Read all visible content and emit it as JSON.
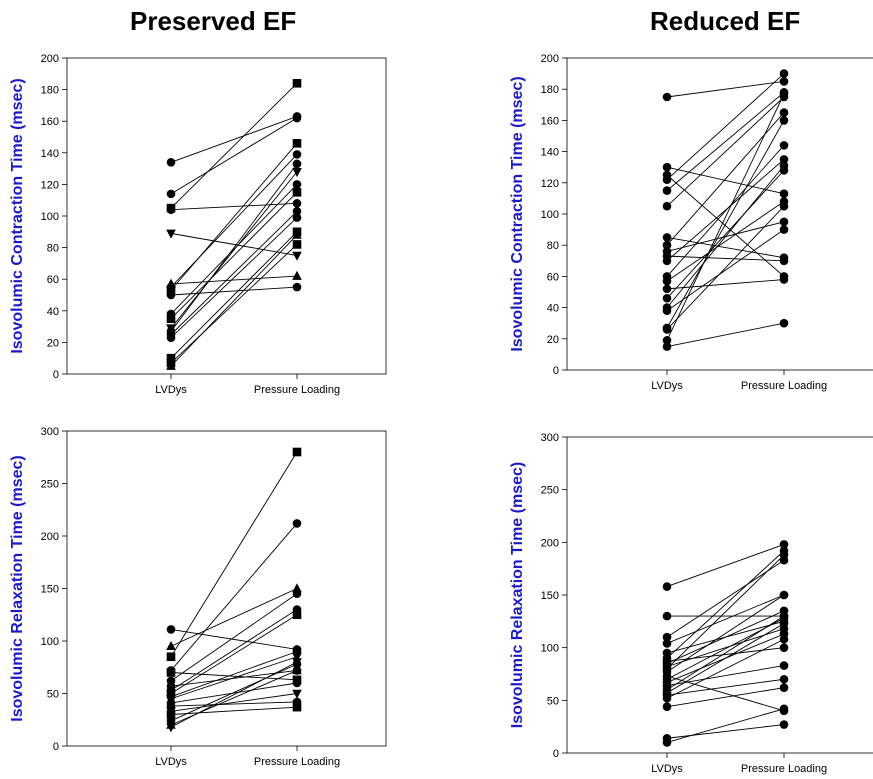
{
  "titles": {
    "left": "Preserved EF",
    "right": "Reduced EF"
  },
  "chart_data": [
    {
      "type": "line",
      "panel": "top-left",
      "ylabel": "Isovolumic Contraction Time (msec)",
      "categories": [
        "LVDys",
        "Pressure Loading"
      ],
      "ylim": [
        0,
        200
      ],
      "yticks": [
        0,
        20,
        40,
        60,
        80,
        100,
        120,
        140,
        160,
        180,
        200
      ],
      "series": [
        {
          "marker": "circle",
          "values": [
            134,
            163
          ]
        },
        {
          "marker": "circle",
          "values": [
            114,
            162
          ]
        },
        {
          "marker": "square",
          "values": [
            105,
            184
          ]
        },
        {
          "marker": "circle",
          "values": [
            104,
            108
          ]
        },
        {
          "marker": "triangle-down",
          "values": [
            89,
            75
          ]
        },
        {
          "marker": "triangle-up",
          "values": [
            57,
            62
          ]
        },
        {
          "marker": "circle",
          "values": [
            55,
            139
          ]
        },
        {
          "marker": "square",
          "values": [
            53,
            146
          ]
        },
        {
          "marker": "circle",
          "values": [
            50,
            55
          ]
        },
        {
          "marker": "circle",
          "values": [
            38,
            120
          ]
        },
        {
          "marker": "square",
          "values": [
            35,
            115
          ]
        },
        {
          "marker": "triangle-down",
          "values": [
            29,
            128
          ]
        },
        {
          "marker": "circle",
          "values": [
            27,
            133
          ]
        },
        {
          "marker": "circle",
          "values": [
            25,
            103
          ]
        },
        {
          "marker": "circle",
          "values": [
            23,
            99
          ]
        },
        {
          "marker": "square",
          "values": [
            10,
            90
          ]
        },
        {
          "marker": "square",
          "values": [
            7,
            82
          ]
        },
        {
          "marker": "triangle-up",
          "values": [
            5,
            88
          ]
        }
      ]
    },
    {
      "type": "line",
      "panel": "top-right",
      "ylabel": "Isovolumic Contraction Time (msec)",
      "categories": [
        "LVDys",
        "Pressure Loading"
      ],
      "ylim": [
        0,
        200
      ],
      "yticks": [
        0,
        20,
        40,
        60,
        80,
        100,
        120,
        140,
        160,
        180,
        200
      ],
      "series": [
        {
          "marker": "circle",
          "values": [
            175,
            185
          ]
        },
        {
          "marker": "circle",
          "values": [
            130,
            113
          ]
        },
        {
          "marker": "circle",
          "values": [
            125,
            60
          ]
        },
        {
          "marker": "circle",
          "values": [
            122,
            190
          ]
        },
        {
          "marker": "circle",
          "values": [
            115,
            178
          ]
        },
        {
          "marker": "circle",
          "values": [
            105,
            175
          ]
        },
        {
          "marker": "circle",
          "values": [
            85,
            72
          ]
        },
        {
          "marker": "circle",
          "values": [
            80,
            165
          ]
        },
        {
          "marker": "circle",
          "values": [
            76,
            95
          ]
        },
        {
          "marker": "circle",
          "values": [
            73,
            70
          ]
        },
        {
          "marker": "circle",
          "values": [
            70,
            135
          ]
        },
        {
          "marker": "circle",
          "values": [
            60,
            144
          ]
        },
        {
          "marker": "circle",
          "values": [
            57,
            108
          ]
        },
        {
          "marker": "circle",
          "values": [
            52,
            58
          ]
        },
        {
          "marker": "circle",
          "values": [
            46,
            128
          ]
        },
        {
          "marker": "circle",
          "values": [
            40,
            131
          ]
        },
        {
          "marker": "circle",
          "values": [
            38,
            90
          ]
        },
        {
          "marker": "circle",
          "values": [
            27,
            160
          ]
        },
        {
          "marker": "circle",
          "values": [
            26,
            105
          ]
        },
        {
          "marker": "circle",
          "values": [
            19,
            177
          ]
        },
        {
          "marker": "circle",
          "values": [
            15,
            30
          ]
        }
      ]
    },
    {
      "type": "line",
      "panel": "bottom-left",
      "ylabel": "Isovolumic Relaxation Time (msec)",
      "categories": [
        "LVDys",
        "Pressure Loading"
      ],
      "ylim": [
        0,
        300
      ],
      "yticks": [
        0,
        50,
        100,
        150,
        200,
        250,
        300
      ],
      "series": [
        {
          "marker": "circle",
          "values": [
            111,
            92
          ]
        },
        {
          "marker": "triangle-up",
          "values": [
            95,
            150
          ]
        },
        {
          "marker": "square",
          "values": [
            85,
            280
          ]
        },
        {
          "marker": "circle",
          "values": [
            72,
            212
          ]
        },
        {
          "marker": "square",
          "values": [
            70,
            63
          ]
        },
        {
          "marker": "circle",
          "values": [
            62,
            145
          ]
        },
        {
          "marker": "circle",
          "values": [
            57,
            72
          ]
        },
        {
          "marker": "circle",
          "values": [
            53,
            130
          ]
        },
        {
          "marker": "square",
          "values": [
            50,
            125
          ]
        },
        {
          "marker": "circle",
          "values": [
            47,
            90
          ]
        },
        {
          "marker": "triangle-down",
          "values": [
            45,
            85
          ]
        },
        {
          "marker": "circle",
          "values": [
            41,
            60
          ]
        },
        {
          "marker": "circle",
          "values": [
            38,
            42
          ]
        },
        {
          "marker": "triangle-down",
          "values": [
            33,
            50
          ]
        },
        {
          "marker": "square",
          "values": [
            30,
            37
          ]
        },
        {
          "marker": "circle",
          "values": [
            24,
            78
          ]
        },
        {
          "marker": "triangle-up",
          "values": [
            20,
            72
          ]
        },
        {
          "marker": "triangle-down",
          "values": [
            18,
            80
          ]
        }
      ]
    },
    {
      "type": "line",
      "panel": "bottom-right",
      "ylabel": "Isovolumic Relaxation Time (msec)",
      "categories": [
        "LVDys",
        "Pressure Loading"
      ],
      "ylim": [
        0,
        300
      ],
      "yticks": [
        0,
        50,
        100,
        150,
        200,
        250,
        300
      ],
      "series": [
        {
          "marker": "circle",
          "values": [
            158,
            198
          ]
        },
        {
          "marker": "circle",
          "values": [
            130,
            130
          ]
        },
        {
          "marker": "circle",
          "values": [
            110,
            183
          ]
        },
        {
          "marker": "circle",
          "values": [
            104,
            150
          ]
        },
        {
          "marker": "circle",
          "values": [
            95,
            125
          ]
        },
        {
          "marker": "circle",
          "values": [
            90,
            192
          ]
        },
        {
          "marker": "circle",
          "values": [
            87,
            100
          ]
        },
        {
          "marker": "circle",
          "values": [
            85,
            135
          ]
        },
        {
          "marker": "circle",
          "values": [
            82,
            118
          ]
        },
        {
          "marker": "circle",
          "values": [
            80,
            188
          ]
        },
        {
          "marker": "circle",
          "values": [
            77,
            150
          ]
        },
        {
          "marker": "circle",
          "values": [
            73,
            40
          ]
        },
        {
          "marker": "circle",
          "values": [
            70,
            128
          ]
        },
        {
          "marker": "circle",
          "values": [
            67,
            113
          ]
        },
        {
          "marker": "circle",
          "values": [
            64,
            83
          ]
        },
        {
          "marker": "circle",
          "values": [
            60,
            130
          ]
        },
        {
          "marker": "circle",
          "values": [
            57,
            123
          ]
        },
        {
          "marker": "circle",
          "values": [
            55,
            70
          ]
        },
        {
          "marker": "circle",
          "values": [
            52,
            108
          ]
        },
        {
          "marker": "circle",
          "values": [
            44,
            62
          ]
        },
        {
          "marker": "circle",
          "values": [
            14,
            27
          ]
        },
        {
          "marker": "circle",
          "values": [
            10,
            42
          ]
        }
      ]
    }
  ],
  "colors": {
    "ylabel": "#1a1acc",
    "marks": "#000000"
  }
}
